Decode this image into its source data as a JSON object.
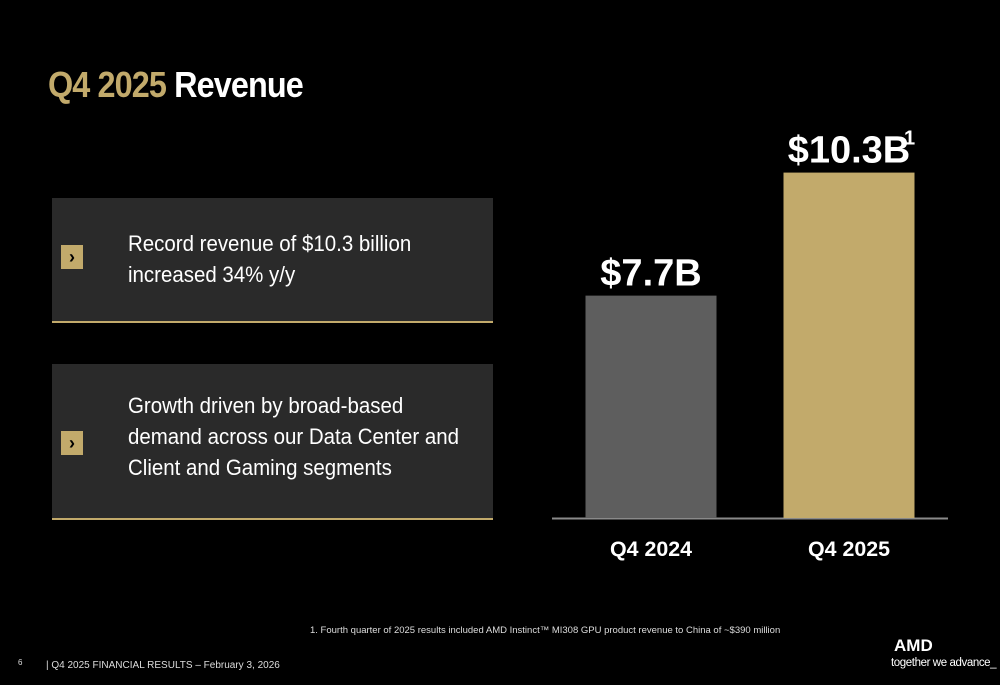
{
  "header": {
    "title_prefix": "Q4 2025",
    "title": "Revenue"
  },
  "bullets": [
    {
      "lines": [
        "Record revenue of $10.3 billion",
        "increased 34% y/y"
      ]
    },
    {
      "lines": [
        "Growth driven by broad-based",
        "demand across our Data Center and",
        "Client and Gaming segments"
      ]
    }
  ],
  "chart_data": {
    "type": "bar",
    "categories": [
      "Q4 2024",
      "Q4 2025"
    ],
    "values": [
      7.7,
      10.3
    ],
    "value_labels": [
      "$7.7B",
      "$10.3B"
    ],
    "value_label_superscripts": [
      null,
      "1"
    ],
    "colors": [
      "#5e5e5e",
      "#c2aa6b"
    ],
    "ylim": [
      3,
      11.2
    ]
  },
  "footnote": "1. Fourth quarter of 2025 results included AMD Instinct™ MI308 GPU product revenue to China of ~$390 million",
  "footer": {
    "page": "6",
    "text": "|  Q4 2025 FINANCIAL RESULTS – February 3, 2026",
    "logo": "AMD",
    "tagline": "together we advance_"
  }
}
